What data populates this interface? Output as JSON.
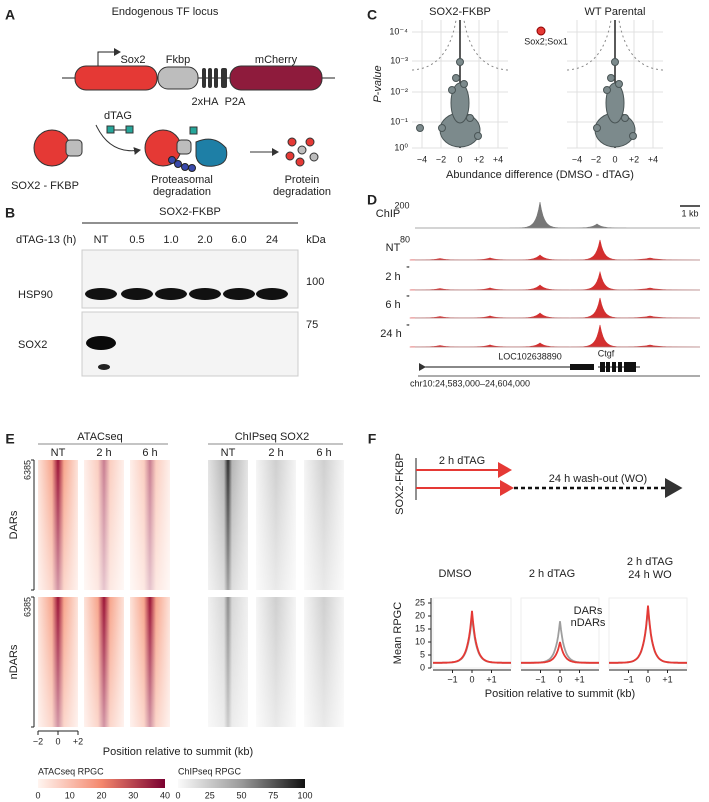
{
  "panel_a": {
    "label": "A",
    "title": "Endogenous TF locus",
    "genes": [
      "Sox2",
      "Fkbp",
      "mCherry"
    ],
    "tags": [
      "2xHA",
      "P2A"
    ],
    "drug": "dTAG",
    "protein": "SOX2 - FKBP",
    "step_1": [
      "Proteasomal",
      "degradation"
    ],
    "step_2": [
      "Protein",
      "degradation"
    ]
  },
  "panel_b": {
    "label": "B",
    "title": "SOX2-FKBP",
    "row_header": "dTAG-13 (h)",
    "lanes": [
      "NT",
      "0.5",
      "1.0",
      "2.0",
      "6.0",
      "24"
    ],
    "unit": "kDa",
    "markers": [
      100,
      75
    ],
    "blots": [
      "HSP90",
      "SOX2"
    ]
  },
  "panel_c": {
    "label": "C",
    "plots": [
      "SOX2-FKBP",
      "WT Parental"
    ],
    "y_label": "P-value",
    "yticks": [
      "10⁻⁴",
      "10⁻³",
      "10⁻²",
      "10⁻¹",
      "10⁰"
    ],
    "xticks": [
      "−4",
      "−2",
      "0",
      "+2",
      "+4"
    ],
    "x_label": "Abundance difference (DMSO - dTAG)",
    "annotation": "Sox2;Sox1"
  },
  "panel_d": {
    "label": "D",
    "tracks": [
      "ChIP",
      "NT",
      "2 h",
      "6 h",
      "24 h"
    ],
    "scales": [
      200,
      80
    ],
    "ditto": [
      "\"",
      "\"",
      "\""
    ],
    "scale_bar": "1 kb",
    "genes": [
      "LOC102638890",
      "Ctgf"
    ],
    "locus": "chr10:24,583,000–24,604,000"
  },
  "panel_e": {
    "label": "E",
    "groups": [
      "ATACseq",
      "ChIPseq SOX2"
    ],
    "columns": [
      "NT",
      "2 h",
      "6 h",
      "NT",
      "2 h",
      "6 h"
    ],
    "row_counts": [
      6385,
      6385
    ],
    "rows": [
      "DARs",
      "nDARs"
    ],
    "xticks": [
      "−2",
      "0",
      "+2"
    ],
    "x_label": "Position relative to summit (kb)",
    "colorbars": [
      {
        "title": "ATACseq RPGC",
        "ticks": [
          0,
          10,
          20,
          30,
          40
        ]
      },
      {
        "title": "ChIPseq RPGC",
        "ticks": [
          0,
          25,
          50,
          75,
          100
        ]
      }
    ]
  },
  "panel_f": {
    "label": "F",
    "construct": "SOX2-FKBP",
    "treatment": "2 h dTAG",
    "washout": "24 h wash-out (WO)",
    "plots": [
      "DMSO",
      "2 h dTAG",
      "2 h dTAG"
    ],
    "plot_subtitle": "24 h WO",
    "legend": [
      "DARs",
      "nDARs"
    ],
    "y_label": "Mean RPGC",
    "yticks": [
      0,
      5,
      10,
      15,
      20,
      25
    ],
    "xticks": [
      "−1",
      "0",
      "+1"
    ],
    "x_label": "Position relative to summit (kb)"
  }
}
